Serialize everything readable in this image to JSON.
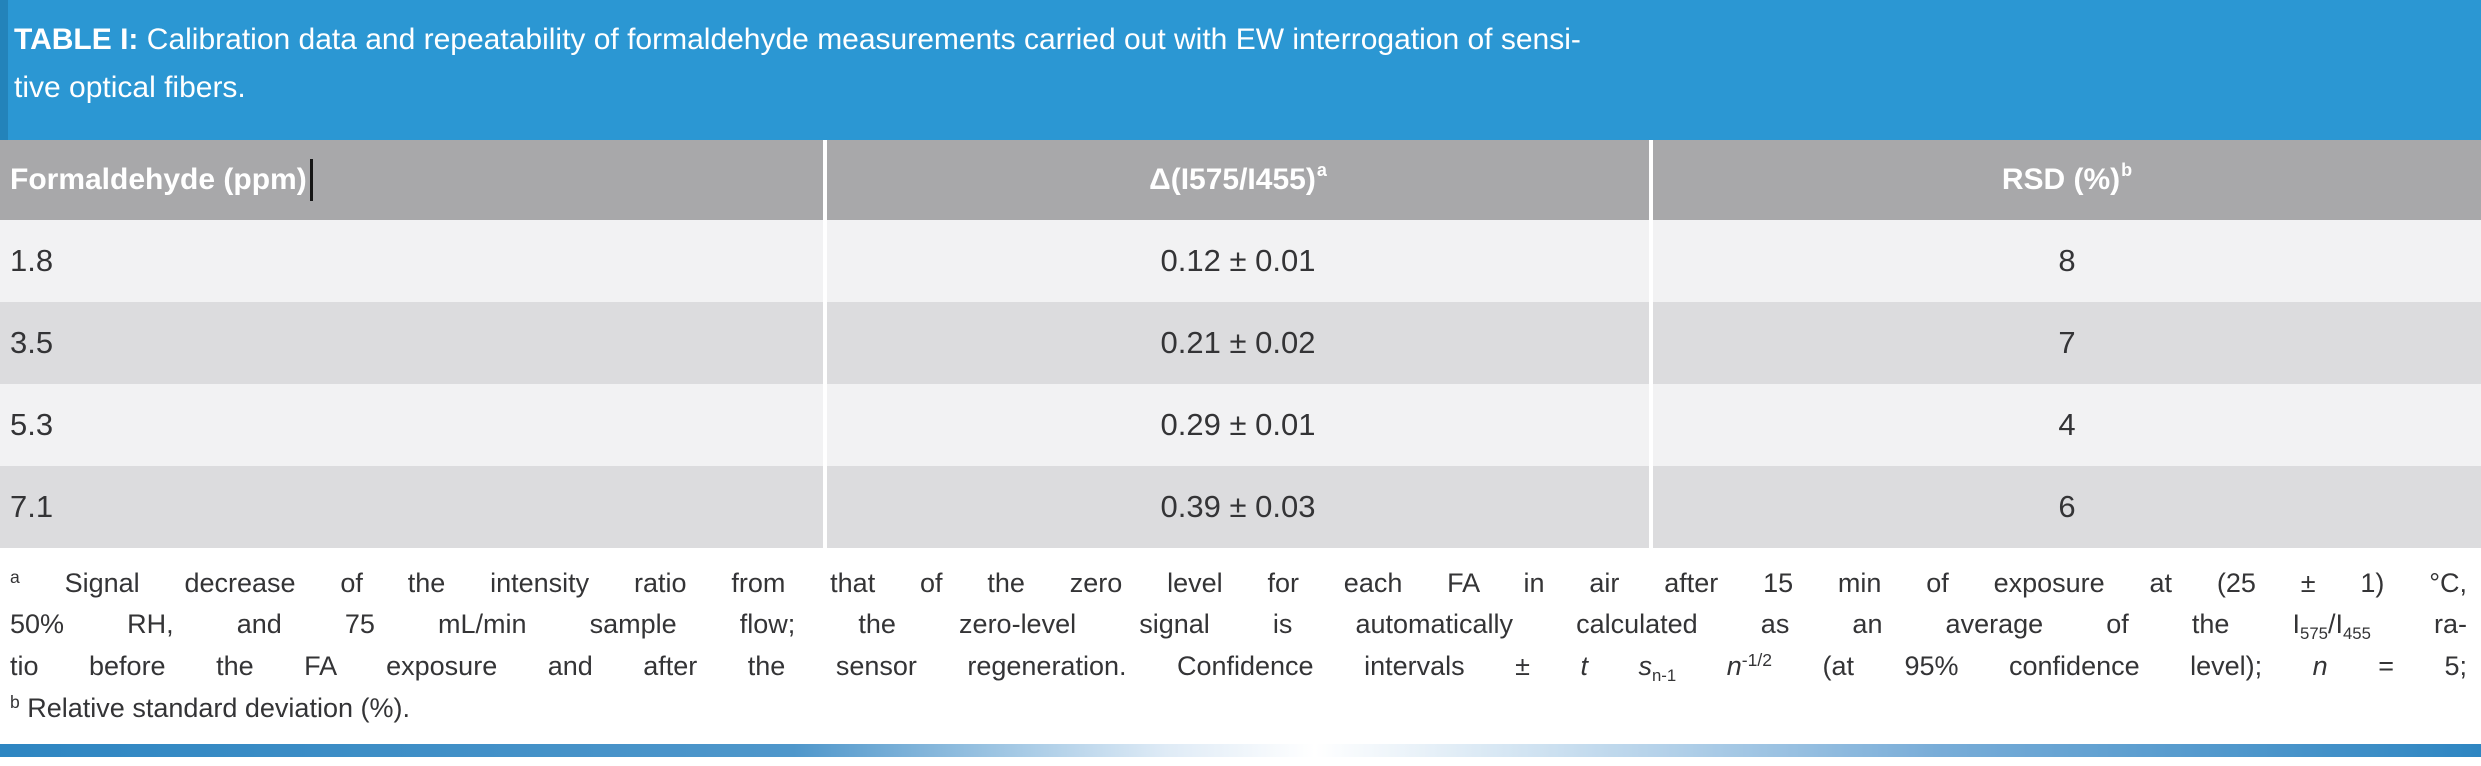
{
  "colors": {
    "header_blue": "#2b97d3",
    "column_header_gray": "#a8a8aa",
    "row_light": "#f2f2f3",
    "row_dark": "#dcdcde",
    "text": "#343436",
    "accent_bar_blue": "#2e86c2"
  },
  "title": {
    "label": "TABLE I:",
    "line1_rest": "Calibration data and repeatability of formaldehyde measurements carried out with EW interrogation of sensi-",
    "line2": "tive optical fibers."
  },
  "table": {
    "headers": {
      "col1": "Formaldehyde (ppm)",
      "col2_main": "Δ(I575/I455)",
      "col2_sup": "a",
      "col3_main": "RSD (%)",
      "col3_sup": "b"
    },
    "rows": [
      {
        "ppm": "1.8",
        "delta": "0.12 ± 0.01",
        "rsd": "8"
      },
      {
        "ppm": "3.5",
        "delta": "0.21 ± 0.02",
        "rsd": "7"
      },
      {
        "ppm": "5.3",
        "delta": "0.29 ± 0.01",
        "rsd": "4"
      },
      {
        "ppm": "7.1",
        "delta": "0.39 ± 0.03",
        "rsd": "6"
      }
    ]
  },
  "footnote": {
    "line1": {
      "sup": "a",
      "text": "Signal decrease of the intensity ratio from that of the zero level for each FA in air after 15 min of exposure at (25 ± 1) °C,"
    },
    "line2": {
      "t1": "50% RH, and 75 mL/min sample flow; the zero-level signal is automatically calculated as an average of the",
      "sym1": "I",
      "sub1": "575",
      "sym2": "/I",
      "sub2": "455",
      "t2": "ra-"
    },
    "line3": {
      "t1": "tio before the FA exposure and after the sensor regeneration. Confidence intervals ±",
      "var_t": "t",
      "var_s": "s",
      "sub_s": "n-1",
      "var_n": "n",
      "sup_n": "-1/2",
      "t2": "(at 95% confidence level);",
      "var_n2": "n",
      "t3": "= 5;"
    },
    "line4": {
      "sup": "b",
      "text": "Relative standard deviation (%)."
    }
  }
}
